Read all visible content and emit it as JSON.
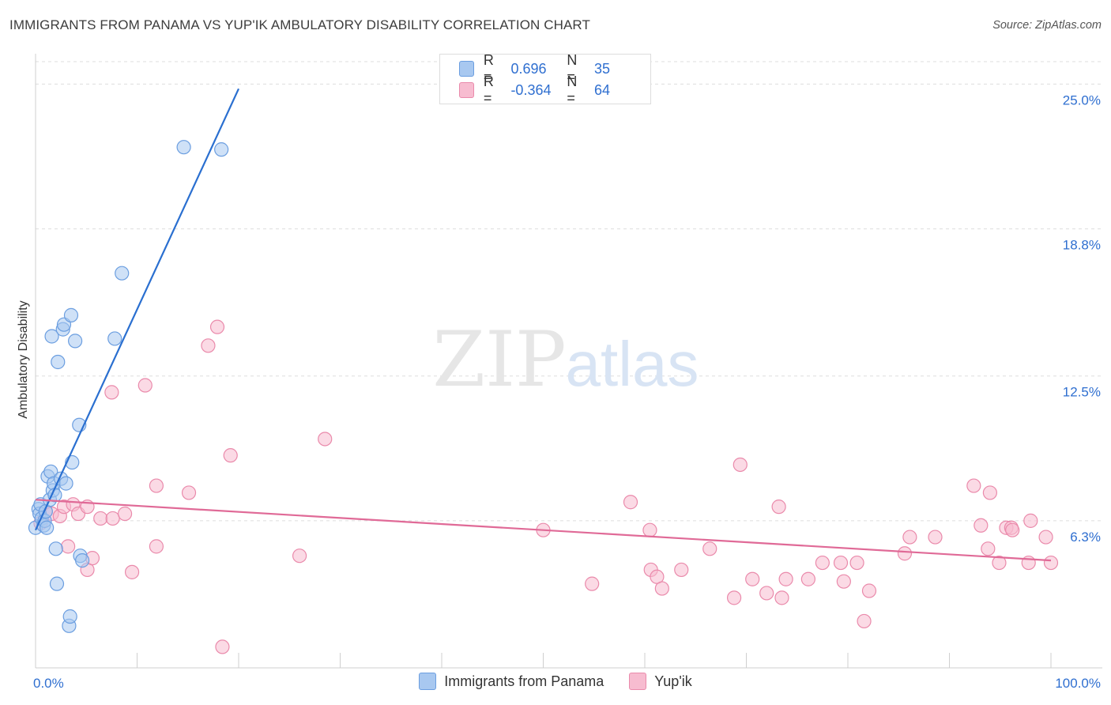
{
  "header": {
    "title": "IMMIGRANTS FROM PANAMA VS YUP'IK AMBULATORY DISABILITY CORRELATION CHART",
    "source": "Source: ZipAtlas.com"
  },
  "watermark": {
    "part1": "ZIP",
    "part2": "atlas"
  },
  "legend_top": {
    "rows": [
      {
        "r_label": "R =",
        "r_value": "0.696",
        "n_label": "N =",
        "n_value": "35"
      },
      {
        "r_label": "R =",
        "r_value": "-0.364",
        "n_label": "N =",
        "n_value": "64"
      }
    ]
  },
  "chart_data": {
    "type": "scatter",
    "title": "IMMIGRANTS FROM PANAMA VS YUP'IK AMBULATORY DISABILITY CORRELATION CHART",
    "xlabel": "",
    "ylabel": "Ambulatory Disability",
    "xlim": [
      0,
      100
    ],
    "ylim": [
      0,
      26.3
    ],
    "x_tick_labels": [
      "0.0%",
      "100.0%"
    ],
    "y_ticks": [
      6.3,
      12.5,
      18.8,
      25.0
    ],
    "y_tick_labels": [
      "6.3%",
      "12.5%",
      "18.8%",
      "25.0%"
    ],
    "grid": true,
    "colors": {
      "panama_fill": "#a8c8f0",
      "panama_stroke": "#6b9ee0",
      "panama_line": "#2a6fd0",
      "yupik_fill": "#f7bcd0",
      "yupik_stroke": "#ea8aab",
      "yupik_line": "#e06a97",
      "grid": "#dddddd",
      "axis_tick": "#2f6fd0"
    },
    "series": [
      {
        "name": "Immigrants from Panama",
        "r": 0.696,
        "n": 35,
        "trend": {
          "x0": 0.0,
          "y0": 5.9,
          "x1": 20.0,
          "y1": 24.8
        },
        "points": [
          [
            0.0,
            6.0
          ],
          [
            0.3,
            6.8
          ],
          [
            0.4,
            6.6
          ],
          [
            0.5,
            7.0
          ],
          [
            0.6,
            6.4
          ],
          [
            0.8,
            6.1
          ],
          [
            0.9,
            6.3
          ],
          [
            1.0,
            6.7
          ],
          [
            1.1,
            6.0
          ],
          [
            1.2,
            8.2
          ],
          [
            1.4,
            7.2
          ],
          [
            1.5,
            8.4
          ],
          [
            1.6,
            14.2
          ],
          [
            1.7,
            7.6
          ],
          [
            1.8,
            7.9
          ],
          [
            1.9,
            7.4
          ],
          [
            2.0,
            5.1
          ],
          [
            2.1,
            3.6
          ],
          [
            2.2,
            13.1
          ],
          [
            2.5,
            8.1
          ],
          [
            2.7,
            14.5
          ],
          [
            2.8,
            14.7
          ],
          [
            3.0,
            7.9
          ],
          [
            3.3,
            1.8
          ],
          [
            3.4,
            2.2
          ],
          [
            3.5,
            15.1
          ],
          [
            3.6,
            8.8
          ],
          [
            3.9,
            14.0
          ],
          [
            4.3,
            10.4
          ],
          [
            4.4,
            4.8
          ],
          [
            4.6,
            4.6
          ],
          [
            7.8,
            14.1
          ],
          [
            8.5,
            16.9
          ],
          [
            14.6,
            22.3
          ],
          [
            18.3,
            22.2
          ]
        ]
      },
      {
        "name": "Yup'ik",
        "r": -0.364,
        "n": 64,
        "trend": {
          "x0": 0.0,
          "y0": 7.2,
          "x1": 100.0,
          "y1": 4.6
        },
        "points": [
          [
            0.5,
            6.2
          ],
          [
            1.0,
            6.7
          ],
          [
            1.6,
            6.6
          ],
          [
            2.4,
            6.5
          ],
          [
            2.8,
            6.9
          ],
          [
            3.2,
            5.2
          ],
          [
            3.7,
            7.0
          ],
          [
            4.2,
            6.6
          ],
          [
            5.1,
            6.9
          ],
          [
            5.1,
            4.2
          ],
          [
            5.6,
            4.7
          ],
          [
            6.4,
            6.4
          ],
          [
            7.6,
            6.4
          ],
          [
            7.5,
            11.8
          ],
          [
            8.8,
            6.6
          ],
          [
            9.5,
            4.1
          ],
          [
            10.8,
            12.1
          ],
          [
            11.9,
            7.8
          ],
          [
            11.9,
            5.2
          ],
          [
            15.1,
            7.5
          ],
          [
            17.0,
            13.8
          ],
          [
            17.9,
            14.6
          ],
          [
            18.4,
            0.9
          ],
          [
            19.2,
            9.1
          ],
          [
            26.0,
            4.8
          ],
          [
            28.5,
            9.8
          ],
          [
            50.0,
            5.9
          ],
          [
            54.8,
            3.6
          ],
          [
            58.6,
            7.1
          ],
          [
            60.5,
            5.9
          ],
          [
            60.6,
            4.2
          ],
          [
            61.2,
            3.9
          ],
          [
            61.7,
            3.4
          ],
          [
            63.6,
            4.2
          ],
          [
            66.4,
            5.1
          ],
          [
            68.8,
            3.0
          ],
          [
            69.4,
            8.7
          ],
          [
            70.6,
            3.8
          ],
          [
            72.0,
            3.2
          ],
          [
            73.2,
            6.9
          ],
          [
            73.5,
            3.0
          ],
          [
            73.9,
            3.8
          ],
          [
            76.1,
            3.8
          ],
          [
            77.5,
            4.5
          ],
          [
            79.3,
            4.5
          ],
          [
            79.6,
            3.7
          ],
          [
            80.9,
            4.5
          ],
          [
            81.6,
            2.0
          ],
          [
            82.1,
            3.3
          ],
          [
            85.6,
            4.9
          ],
          [
            86.1,
            5.6
          ],
          [
            88.6,
            5.6
          ],
          [
            92.4,
            7.8
          ],
          [
            93.1,
            6.1
          ],
          [
            93.8,
            5.1
          ],
          [
            94.0,
            7.5
          ],
          [
            94.9,
            4.5
          ],
          [
            95.6,
            6.0
          ],
          [
            96.1,
            6.0
          ],
          [
            96.2,
            5.9
          ],
          [
            97.8,
            4.5
          ],
          [
            98.0,
            6.3
          ],
          [
            99.5,
            5.6
          ],
          [
            100.0,
            4.5
          ]
        ]
      }
    ]
  }
}
